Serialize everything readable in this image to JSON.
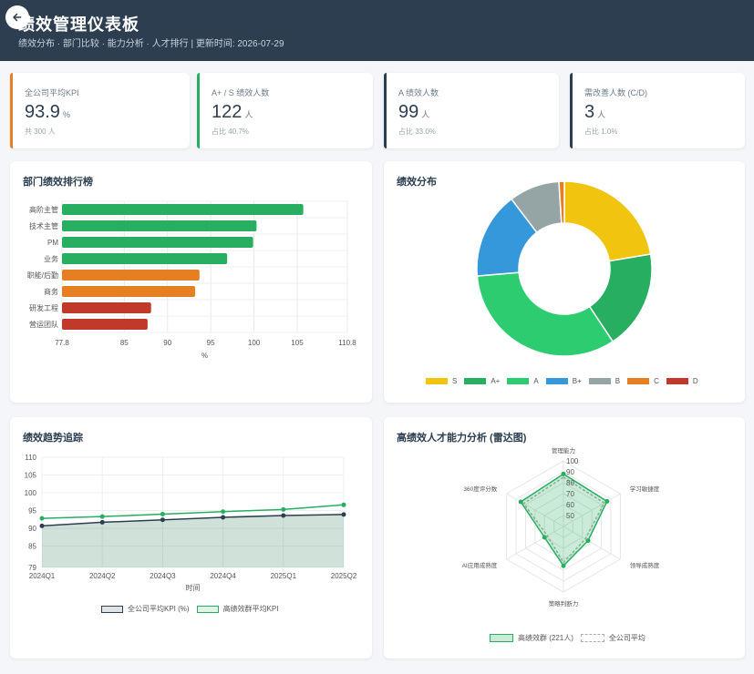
{
  "header": {
    "title": "绩效管理仪表板",
    "subtitle": "绩效分布 · 部门比较 · 能力分析 · 人才排行 | 更新时间: 2026-07-29"
  },
  "kpis": [
    {
      "label": "全公司平均KPI",
      "value": "93.9",
      "unit": "%",
      "note": "共 300 人",
      "color": "#e67e22"
    },
    {
      "label": "A+ / S 绩效人数",
      "value": "122",
      "unit": "人",
      "note": "占比 40.7%",
      "color": "#27ae60"
    },
    {
      "label": "A 绩效人数",
      "value": "99",
      "unit": "人",
      "note": "占比 33.0%",
      "color": "#2c3e50"
    },
    {
      "label": "需改善人数 (C/D)",
      "value": "3",
      "unit": "人",
      "note": "占比 1.0%",
      "color": "#2c3e50"
    }
  ],
  "dept_chart": {
    "title": "部门绩效排行榜",
    "chart_data": {
      "type": "bar",
      "orientation": "horizontal",
      "categories": [
        "高阶主管",
        "技术主管",
        "PM",
        "业务",
        "职能/后勤",
        "商务",
        "研发工程",
        "营运团队"
      ],
      "values": [
        105.7,
        100.3,
        99.9,
        96.9,
        93.7,
        93.2,
        88.1,
        87.7
      ],
      "colors": [
        "#27ae60",
        "#27ae60",
        "#27ae60",
        "#27ae60",
        "#e67e22",
        "#e67e22",
        "#c0392b",
        "#c0392b"
      ],
      "xlabel": "%",
      "xlim": [
        77.8,
        110.8
      ],
      "xticks": [
        "77.8",
        "85",
        "90",
        "95",
        "100",
        "105",
        "110.8"
      ],
      "grid": true
    }
  },
  "dist_chart": {
    "title": "绩效分布",
    "chart_data": {
      "type": "pie",
      "donut": true,
      "labels": [
        "S",
        "A+",
        "A",
        "B+",
        "B",
        "C",
        "D"
      ],
      "values": [
        67,
        55,
        99,
        48,
        28,
        3,
        0
      ],
      "colors": [
        "#f1c40f",
        "#27ae60",
        "#2ecc71",
        "#3498db",
        "#95a5a6",
        "#e67e22",
        "#c0392b"
      ],
      "legend": "bottom"
    }
  },
  "trend_chart": {
    "title": "绩效趋势追踪",
    "chart_data": {
      "type": "line",
      "x": [
        "2024Q1",
        "2024Q2",
        "2024Q3",
        "2024Q4",
        "2025Q1",
        "2025Q2"
      ],
      "series": [
        {
          "name": "全公司平均KPI (%)",
          "values": [
            90.7,
            91.7,
            92.4,
            93.1,
            93.6,
            93.9
          ],
          "color": "#2c3e50",
          "fill": true
        },
        {
          "name": "高绩效群平均KPI",
          "values": [
            92.8,
            93.3,
            94.0,
            94.7,
            95.3,
            96.6
          ],
          "color": "#27ae60",
          "fill": false
        }
      ],
      "xlabel": "时间",
      "ylim": [
        79,
        110
      ],
      "yticks": [
        "79",
        "85",
        "90",
        "95",
        "100",
        "105",
        "110"
      ],
      "legend": "bottom"
    }
  },
  "radar_chart": {
    "title": "高绩效人才能力分析 (雷达图)",
    "chart_data": {
      "type": "radar",
      "axes": [
        "管理能力",
        "学习敏捷度",
        "领导成熟度",
        "策略判断力",
        "AI应用成熟度",
        "360度评分数"
      ],
      "rticks": [
        "50",
        "60",
        "70",
        "80",
        "90",
        "100"
      ],
      "rlim": [
        40,
        100
      ],
      "series": [
        {
          "name": "高绩效群 (221人)",
          "values": [
            88,
            86,
            66,
            76,
            60,
            85
          ],
          "color": "#27ae60",
          "dashed": false
        },
        {
          "name": "全公司平均",
          "values": [
            85,
            83,
            63,
            73,
            57,
            82
          ],
          "color": "#aaaaaa",
          "dashed": true
        }
      ],
      "legend": "bottom"
    }
  }
}
